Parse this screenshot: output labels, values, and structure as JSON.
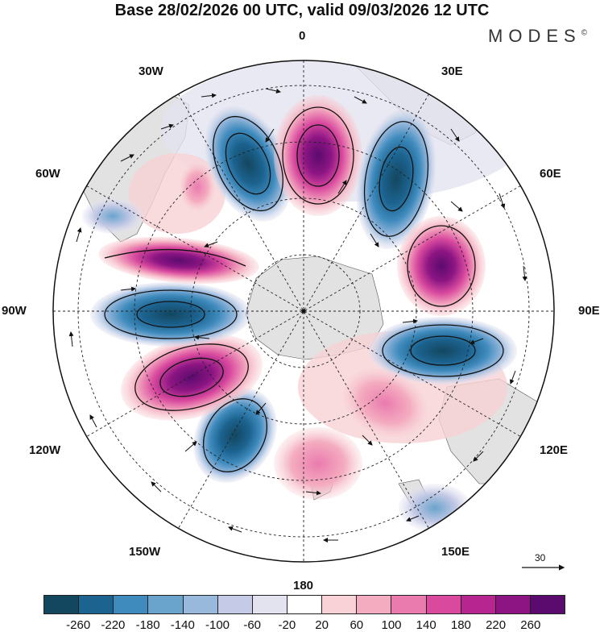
{
  "header": {
    "title": "Base 28/02/2026 00 UTC, valid 09/03/2026 12 UTC",
    "brand": "MODES"
  },
  "longitude_labels": {
    "top": "0",
    "top_left": "30W",
    "top_right": "30E",
    "upper_left": "60W",
    "upper_right": "60E",
    "left": "90W",
    "right": "90E",
    "lower_left": "120W",
    "lower_right": "120E",
    "bottom_left": "150W",
    "bottom_right": "150E",
    "bottom": "180"
  },
  "reference_vector": {
    "label": "30"
  },
  "colorbar": {
    "ticks": [
      "-260",
      "-220",
      "-180",
      "-140",
      "-100",
      "-60",
      "-20",
      "20",
      "60",
      "100",
      "140",
      "180",
      "220",
      "260"
    ],
    "colors": [
      "#13465f",
      "#1c6390",
      "#3f8bbd",
      "#6aa3cc",
      "#98b8dc",
      "#c5cae6",
      "#e3e3f0",
      "#ffffff",
      "#f8d2d6",
      "#f4acc0",
      "#ea7bae",
      "#d94a9e",
      "#b72591",
      "#8c1583",
      "#5b0b6e"
    ]
  },
  "map_colors": {
    "land": "#e2e2e2",
    "ocean": "#ffffff",
    "grid": "#222222",
    "contour": "#111111"
  }
}
